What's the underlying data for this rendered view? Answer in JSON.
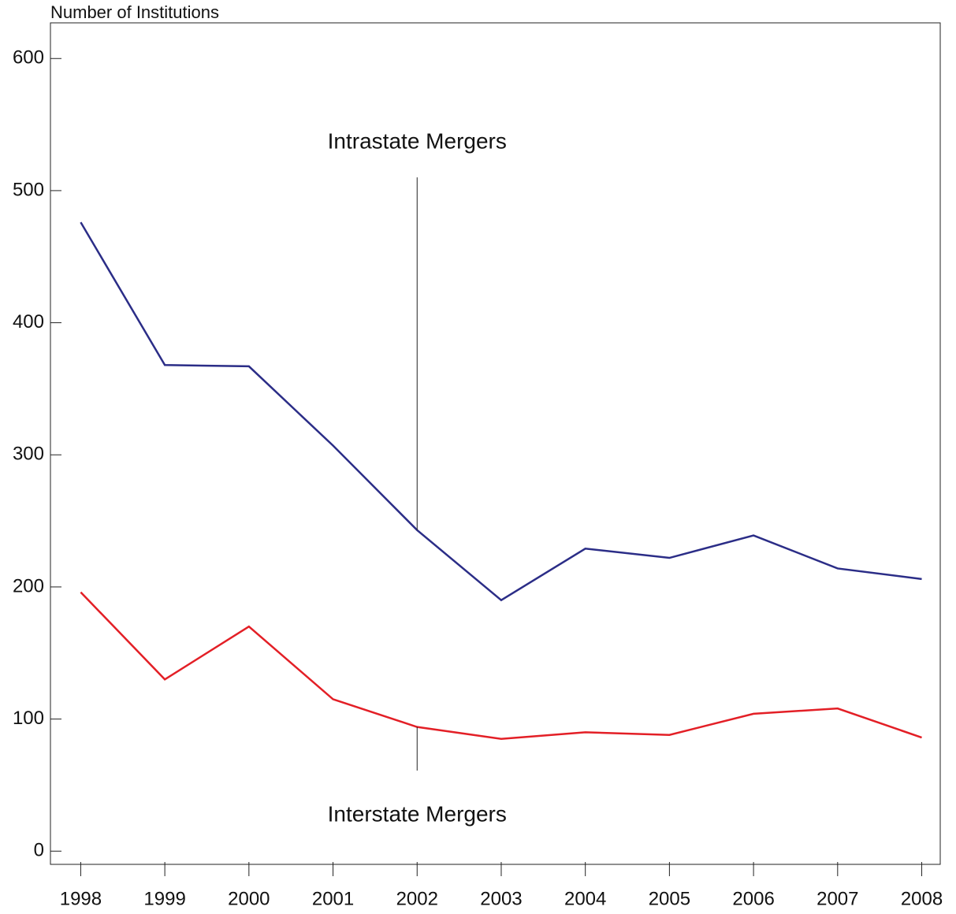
{
  "chart_data": {
    "type": "line",
    "y_label": "Number of Institutions",
    "x": [
      1998,
      1999,
      2000,
      2001,
      2002,
      2003,
      2004,
      2005,
      2006,
      2007,
      2008
    ],
    "xlim": [
      1997.64,
      2008.22
    ],
    "xticks": [
      1998,
      1999,
      2000,
      2001,
      2002,
      2003,
      2004,
      2005,
      2006,
      2007,
      2008
    ],
    "ylim": [
      -10,
      627
    ],
    "yticks": [
      0,
      100,
      200,
      300,
      400,
      500,
      600
    ],
    "series": [
      {
        "color": "#2b2d87",
        "values": [
          476,
          368,
          367,
          307,
          243,
          190,
          229,
          222,
          239,
          214,
          206
        ]
      },
      {
        "color": "#e31f26",
        "values": [
          196,
          130,
          170,
          115,
          94,
          85,
          90,
          88,
          104,
          108,
          86
        ]
      }
    ],
    "annotations": [
      {
        "text": "Intrastate Mergers",
        "x": 2002,
        "y": 243,
        "y_end": 510
      },
      {
        "text": "Interstate Mergers",
        "x": 2002,
        "y": 94,
        "y_end": 61
      }
    ]
  }
}
